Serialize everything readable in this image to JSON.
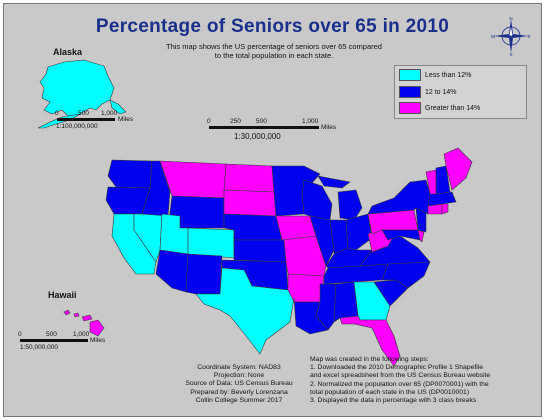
{
  "map": {
    "title": "Percentage of Seniors over 65 in 2010",
    "subtitle": [
      "This map shows the US percentage of seniors over 65 compared",
      "to the total population in each state."
    ],
    "inset_labels": {
      "alaska": "Alaska",
      "hawaii": "Hawaii"
    },
    "compass_letters": {
      "n": "N",
      "e": "E",
      "s": "S",
      "w": "W"
    },
    "legend": [
      {
        "label": "Less than 12%",
        "color": "#00ffff"
      },
      {
        "label": "12 to 14%",
        "color": "#0000ee"
      },
      {
        "label": "Greater than 14%",
        "color": "#ff00ff"
      }
    ],
    "main_scale": {
      "ticks": [
        "0",
        "250",
        "500",
        "1,000"
      ],
      "unit": "Miles",
      "ratio": "1:30,000,000"
    },
    "alaska_scale": {
      "ticks": [
        "0",
        "500",
        "1,000"
      ],
      "unit": "Miles",
      "ratio": "1:100,000,000"
    },
    "hawaii_scale": {
      "ticks": [
        "0",
        "500",
        "1,000"
      ],
      "unit": "Miles",
      "ratio": "1:50,000,000"
    },
    "metadata": [
      "Coordinate System: NAD83",
      "Projection: None",
      "Source of Data: US Census Bureau",
      "Prepared by: Beverly Lorenzana",
      "Collin College Summer 2017"
    ],
    "steps_intro": "Map was created in the following steps:",
    "steps": [
      "1. Downloaded the 2010 Demographic Profile 1 Shapefile",
      "and excel spreadsheet from the US Census Bureau website",
      "2. Normalized the population over 65 (DP0070001) with the",
      "total population of each state in the US (DP0010001)",
      "3. Displayed the data in percentage with 3 class breaks"
    ],
    "state_classes": {
      "WA": "mid",
      "OR": "mid",
      "CA": "low",
      "NV": "low",
      "ID": "mid",
      "MT": "high",
      "WY": "mid",
      "UT": "low",
      "CO": "low",
      "AZ": "mid",
      "NM": "mid",
      "ND": "high",
      "SD": "high",
      "NE": "mid",
      "KS": "mid",
      "OK": "mid",
      "TX": "low",
      "MN": "mid",
      "IA": "high",
      "MO": "high",
      "AR": "high",
      "LA": "mid",
      "WI": "mid",
      "IL": "mid",
      "MI": "mid",
      "IN": "mid",
      "OH": "mid",
      "KY": "mid",
      "TN": "mid",
      "MS": "mid",
      "AL": "mid",
      "GA": "low",
      "FL": "high",
      "SC": "mid",
      "NC": "mid",
      "VA": "mid",
      "WV": "high",
      "PA": "high",
      "NY": "mid",
      "VT": "high",
      "NH": "mid",
      "ME": "high",
      "MA": "mid",
      "CT": "high",
      "RI": "high",
      "NJ": "mid",
      "DE": "high",
      "MD": "mid",
      "AK": "low",
      "HI": "high"
    },
    "class_colors": {
      "low": "#00ffff",
      "mid": "#0000ee",
      "high": "#ff00ff"
    }
  }
}
